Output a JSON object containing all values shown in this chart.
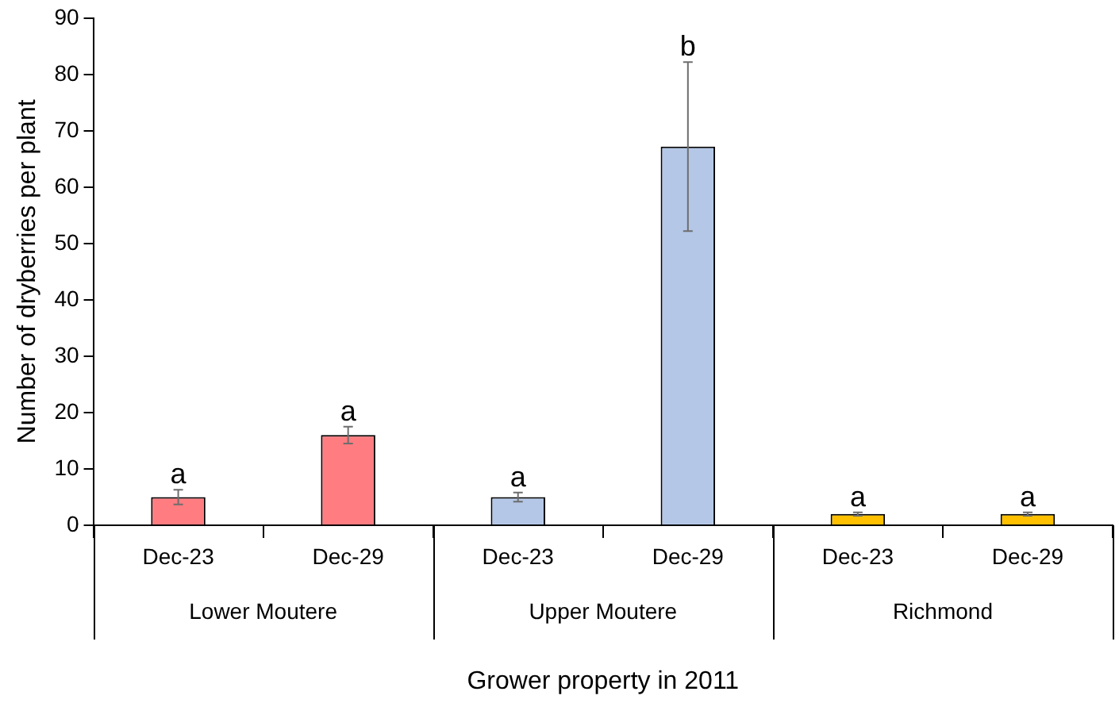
{
  "chart_data": {
    "type": "bar",
    "ylabel": "Number of dryberries per plant",
    "xlabel": "Grower property in 2011",
    "categories": [
      "Dec-23",
      "Dec-29",
      "Dec-23",
      "Dec-29",
      "Dec-23",
      "Dec-29"
    ],
    "values": [
      5,
      16,
      5,
      67.2,
      2,
      2
    ],
    "errors": [
      1.3,
      1.5,
      0.8,
      15,
      0.3,
      0.3
    ],
    "colors": [
      "#ff7c80",
      "#ff7c80",
      "#b4c7e7",
      "#b4c7e7",
      "#ffc000",
      "#ffc000"
    ],
    "value_labels": [
      "a",
      "a",
      "a",
      "b",
      "a",
      "a"
    ],
    "annotations": [
      "Lower Moutere",
      "Upper Moutere",
      "Richmond"
    ],
    "ylim": [
      0,
      90
    ],
    "yticks": [
      0,
      10,
      20,
      30,
      40,
      50,
      60,
      70,
      80,
      90
    ],
    "grid": false,
    "legend": false
  }
}
